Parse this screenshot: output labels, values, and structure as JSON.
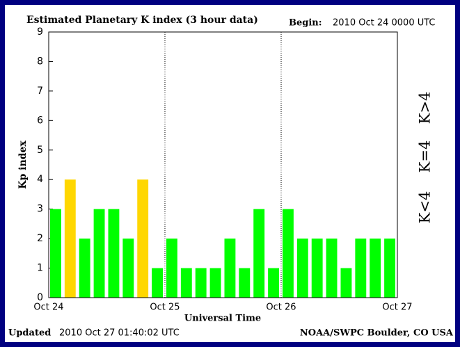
{
  "chart_data": {
    "type": "bar",
    "title": "Estimated Planetary K index (3 hour data)",
    "begin_label": "Begin:",
    "begin_value": "2010 Oct 24 0000 UTC",
    "ylabel": "Kp index",
    "xlabel": "Universal Time",
    "updated_label": "Updated",
    "updated_value": "2010 Oct 27 01:40:02 UTC",
    "source": "NOAA/SWPC Boulder, CO USA",
    "x": [
      0,
      3,
      6,
      9,
      12,
      15,
      18,
      21,
      24,
      27,
      30,
      33,
      36,
      39,
      42,
      45,
      48,
      51,
      54,
      57,
      60,
      63,
      66,
      69
    ],
    "values": [
      3,
      4,
      2,
      3,
      3,
      2,
      4,
      1,
      2,
      1,
      1,
      1,
      2,
      1,
      3,
      1,
      3,
      2,
      2,
      2,
      1,
      2,
      2,
      2
    ],
    "colors": [
      "#00ff00",
      "#ffd700",
      "#00ff00",
      "#00ff00",
      "#00ff00",
      "#00ff00",
      "#ffd700",
      "#00ff00",
      "#00ff00",
      "#00ff00",
      "#00ff00",
      "#00ff00",
      "#00ff00",
      "#00ff00",
      "#00ff00",
      "#00ff00",
      "#00ff00",
      "#00ff00",
      "#00ff00",
      "#00ff00",
      "#00ff00",
      "#00ff00",
      "#00ff00",
      "#00ff00"
    ],
    "legend": [
      {
        "name": "K>4",
        "color": "#ff3300"
      },
      {
        "name": "K=4",
        "color": "#ffd700"
      },
      {
        "name": "K<4",
        "color": "#33dd33"
      }
    ],
    "xlim": [
      0,
      72
    ],
    "xticks": [
      {
        "value": 0,
        "label": "Oct 24"
      },
      {
        "value": 24,
        "label": "Oct 25"
      },
      {
        "value": 48,
        "label": "Oct 26"
      },
      {
        "value": 72,
        "label": "Oct 27"
      }
    ],
    "ylim": [
      0,
      9
    ],
    "yticks": [
      0,
      1,
      2,
      3,
      4,
      5,
      6,
      7,
      8,
      9
    ]
  }
}
